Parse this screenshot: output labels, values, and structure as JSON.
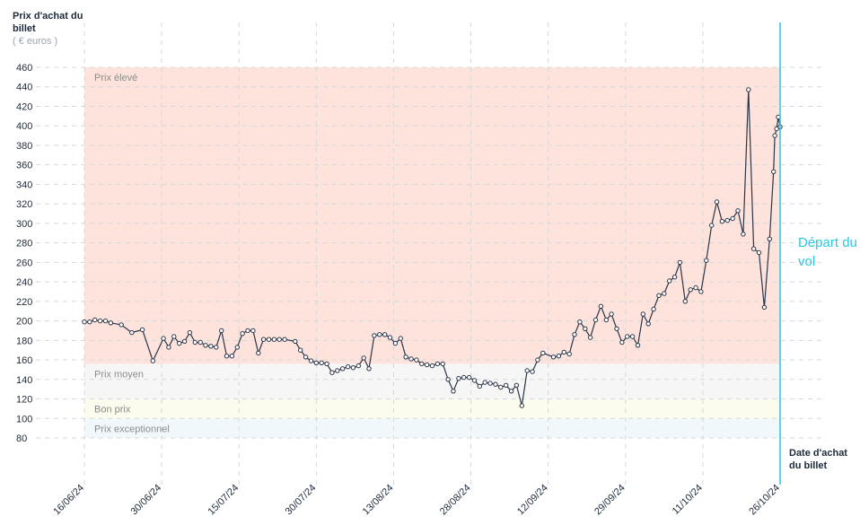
{
  "chart_data": {
    "type": "line",
    "ylabel": "Prix d'achat du billet",
    "yunit": "( € euros )",
    "xlabel": "Date d'achat du billet",
    "departure_label": "Départ du vol",
    "ylim": [
      80,
      460
    ],
    "yticks": [
      80,
      100,
      120,
      140,
      160,
      180,
      200,
      220,
      240,
      260,
      280,
      300,
      320,
      340,
      360,
      380,
      400,
      420,
      440,
      460
    ],
    "xlim": [
      "2024-06-16",
      "2024-10-26"
    ],
    "xticks": [
      "16/06/24",
      "30/06/24",
      "15/07/24",
      "30/07/24",
      "13/08/24",
      "28/08/24",
      "12/09/24",
      "29/09/24",
      "11/10/24",
      "26/10/24"
    ],
    "grid": true,
    "zones": [
      {
        "label": "Prix élevé",
        "from": 156,
        "to": 460,
        "color": "#fde3dc"
      },
      {
        "label": "Prix moyen",
        "from": 120,
        "to": 156,
        "color": "#f6f6f6"
      },
      {
        "label": "Bon prix",
        "from": 100,
        "to": 120,
        "color": "#fbfbee"
      },
      {
        "label": "Prix exceptionnel",
        "from": 80,
        "to": 100,
        "color": "#f1f8fc"
      }
    ],
    "series": [
      {
        "color": "#2b3548",
        "points": [
          [
            "2024-06-16",
            199
          ],
          [
            "2024-06-17",
            199
          ],
          [
            "2024-06-18",
            201
          ],
          [
            "2024-06-19",
            200
          ],
          [
            "2024-06-20",
            200
          ],
          [
            "2024-06-21",
            198
          ],
          [
            "2024-06-23",
            196
          ],
          [
            "2024-06-25",
            188
          ],
          [
            "2024-06-27",
            191
          ],
          [
            "2024-06-29",
            159
          ],
          [
            "2024-07-01",
            182
          ],
          [
            "2024-07-02",
            173
          ],
          [
            "2024-07-03",
            184
          ],
          [
            "2024-07-04",
            177
          ],
          [
            "2024-07-05",
            179
          ],
          [
            "2024-07-06",
            188
          ],
          [
            "2024-07-07",
            178
          ],
          [
            "2024-07-08",
            178
          ],
          [
            "2024-07-09",
            175
          ],
          [
            "2024-07-10",
            174
          ],
          [
            "2024-07-11",
            173
          ],
          [
            "2024-07-12",
            190
          ],
          [
            "2024-07-13",
            164
          ],
          [
            "2024-07-14",
            164
          ],
          [
            "2024-07-15",
            173
          ],
          [
            "2024-07-16",
            187
          ],
          [
            "2024-07-17",
            190
          ],
          [
            "2024-07-18",
            190
          ],
          [
            "2024-07-19",
            167
          ],
          [
            "2024-07-20",
            181
          ],
          [
            "2024-07-21",
            181
          ],
          [
            "2024-07-22",
            181
          ],
          [
            "2024-07-23",
            181
          ],
          [
            "2024-07-24",
            181
          ],
          [
            "2024-07-26",
            179
          ],
          [
            "2024-07-27",
            170
          ],
          [
            "2024-07-28",
            163
          ],
          [
            "2024-07-29",
            159
          ],
          [
            "2024-07-30",
            157
          ],
          [
            "2024-07-31",
            157
          ],
          [
            "2024-08-01",
            156
          ],
          [
            "2024-08-02",
            147
          ],
          [
            "2024-08-03",
            149
          ],
          [
            "2024-08-04",
            151
          ],
          [
            "2024-08-05",
            153
          ],
          [
            "2024-08-06",
            152
          ],
          [
            "2024-08-07",
            154
          ],
          [
            "2024-08-08",
            162
          ],
          [
            "2024-08-09",
            151
          ],
          [
            "2024-08-10",
            185
          ],
          [
            "2024-08-11",
            186
          ],
          [
            "2024-08-12",
            186
          ],
          [
            "2024-08-13",
            183
          ],
          [
            "2024-08-14",
            177
          ],
          [
            "2024-08-15",
            182
          ],
          [
            "2024-08-16",
            163
          ],
          [
            "2024-08-17",
            161
          ],
          [
            "2024-08-18",
            160
          ],
          [
            "2024-08-19",
            156
          ],
          [
            "2024-08-20",
            155
          ],
          [
            "2024-08-21",
            154
          ],
          [
            "2024-08-22",
            156
          ],
          [
            "2024-08-23",
            156
          ],
          [
            "2024-08-24",
            140
          ],
          [
            "2024-08-25",
            128
          ],
          [
            "2024-08-26",
            141
          ],
          [
            "2024-08-27",
            142
          ],
          [
            "2024-08-28",
            142
          ],
          [
            "2024-08-29",
            139
          ],
          [
            "2024-08-30",
            133
          ],
          [
            "2024-08-31",
            137
          ],
          [
            "2024-09-01",
            136
          ],
          [
            "2024-09-02",
            135
          ],
          [
            "2024-09-03",
            132
          ],
          [
            "2024-09-04",
            134
          ],
          [
            "2024-09-05",
            128
          ],
          [
            "2024-09-06",
            134
          ],
          [
            "2024-09-07",
            113
          ],
          [
            "2024-09-08",
            149
          ],
          [
            "2024-09-09",
            148
          ],
          [
            "2024-09-10",
            160
          ],
          [
            "2024-09-11",
            167
          ],
          [
            "2024-09-13",
            163
          ],
          [
            "2024-09-14",
            164
          ],
          [
            "2024-09-15",
            168
          ],
          [
            "2024-09-16",
            166
          ],
          [
            "2024-09-17",
            186
          ],
          [
            "2024-09-18",
            199
          ],
          [
            "2024-09-19",
            192
          ],
          [
            "2024-09-20",
            183
          ],
          [
            "2024-09-21",
            201
          ],
          [
            "2024-09-22",
            215
          ],
          [
            "2024-09-23",
            201
          ],
          [
            "2024-09-24",
            207
          ],
          [
            "2024-09-25",
            192
          ],
          [
            "2024-09-26",
            178
          ],
          [
            "2024-09-27",
            184
          ],
          [
            "2024-09-28",
            184
          ],
          [
            "2024-09-29",
            175
          ],
          [
            "2024-09-30",
            207
          ],
          [
            "2024-10-01",
            197
          ],
          [
            "2024-10-02",
            212
          ],
          [
            "2024-10-03",
            226
          ],
          [
            "2024-10-04",
            228
          ],
          [
            "2024-10-05",
            241
          ],
          [
            "2024-10-06",
            245
          ],
          [
            "2024-10-07",
            260
          ],
          [
            "2024-10-08",
            220
          ],
          [
            "2024-10-09",
            232
          ],
          [
            "2024-10-10",
            234
          ],
          [
            "2024-10-11",
            230
          ],
          [
            "2024-10-12",
            262
          ],
          [
            "2024-10-13",
            298
          ],
          [
            "2024-10-14",
            322
          ],
          [
            "2024-10-15",
            302
          ],
          [
            "2024-10-16",
            303
          ],
          [
            "2024-10-17",
            305
          ],
          [
            "2024-10-18",
            313
          ],
          [
            "2024-10-19",
            289
          ],
          [
            "2024-10-20",
            437
          ],
          [
            "2024-10-21",
            274
          ],
          [
            "2024-10-22",
            270
          ],
          [
            "2024-10-23",
            214
          ],
          [
            "2024-10-24",
            284
          ],
          [
            "2024-10-24T18:00",
            353
          ],
          [
            "2024-10-25",
            390
          ],
          [
            "2024-10-25T08:00",
            397
          ],
          [
            "2024-10-25T16:00",
            409
          ],
          [
            "2024-10-26",
            399
          ]
        ]
      }
    ]
  }
}
